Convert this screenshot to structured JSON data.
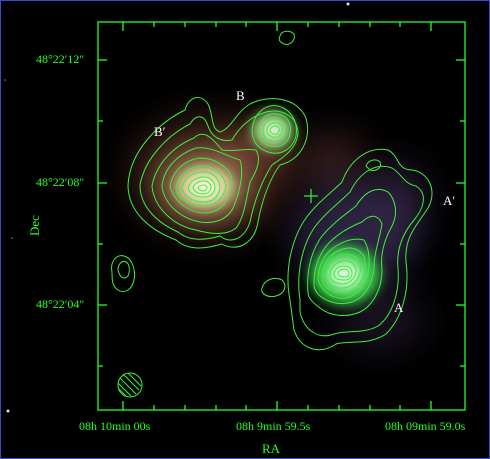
{
  "image": {
    "subject": "radio-contour-overlay",
    "colors": {
      "frame": "#3a4bd6",
      "axes": "#26ff26",
      "contours": "#3cf03c"
    }
  },
  "axes": {
    "xlabel": "RA",
    "ylabel": "Dec",
    "x_ticks": [
      "08h 10min 00s",
      "08h 9min 59.5s",
      "08h 09min 59.0s"
    ],
    "y_ticks": [
      "48°22′12″",
      "48°22′08″",
      "48°22′04″"
    ]
  },
  "components": {
    "a": "A",
    "a_prime": "A′",
    "b": "B",
    "b_prime": "B′"
  }
}
